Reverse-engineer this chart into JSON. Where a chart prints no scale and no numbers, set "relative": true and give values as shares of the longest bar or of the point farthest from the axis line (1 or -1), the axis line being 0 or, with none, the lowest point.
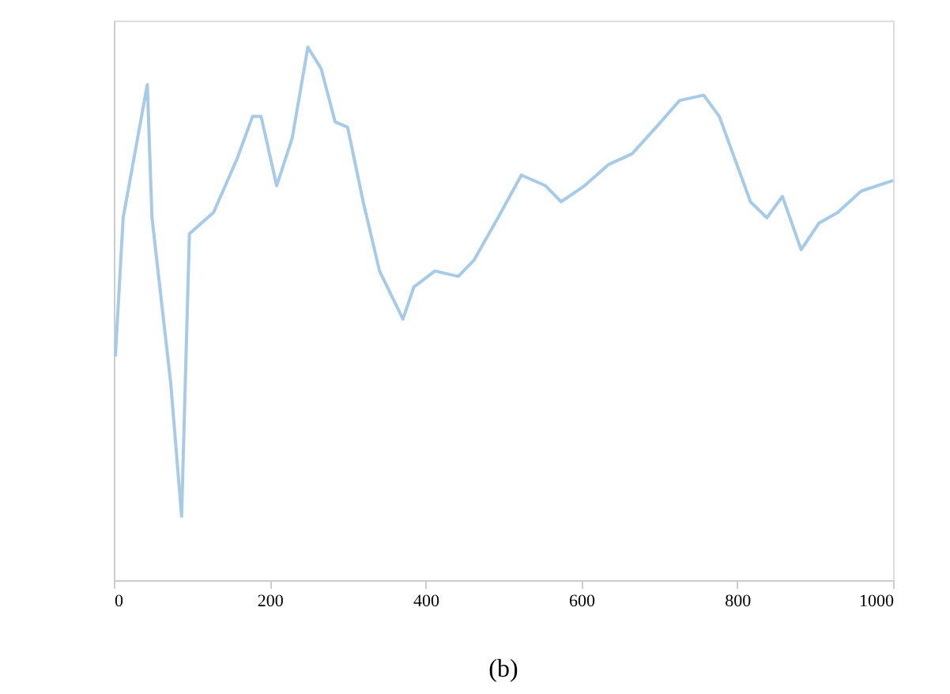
{
  "chart_data": {
    "type": "line",
    "relative": true,
    "annotations": [
      "(b)"
    ],
    "x": [
      2,
      12,
      43,
      49,
      73,
      87,
      97,
      128,
      158,
      178,
      189,
      209,
      229,
      249,
      266,
      284,
      300,
      320,
      341,
      371,
      385,
      412,
      442,
      462,
      493,
      523,
      554,
      574,
      604,
      635,
      665,
      696,
      726,
      757,
      777,
      797,
      817,
      838,
      858,
      882,
      905,
      929,
      959,
      1000
    ],
    "series": [
      {
        "color": "#a6cbe8",
        "values": [
          0.42,
          0.68,
          0.93,
          0.68,
          0.37,
          0.12,
          0.65,
          0.69,
          0.79,
          0.87,
          0.87,
          0.74,
          0.83,
          1.0,
          0.96,
          0.86,
          0.85,
          0.71,
          0.58,
          0.49,
          0.55,
          0.58,
          0.57,
          0.6,
          0.68,
          0.76,
          0.74,
          0.71,
          0.74,
          0.78,
          0.8,
          0.85,
          0.9,
          0.91,
          0.87,
          0.79,
          0.71,
          0.68,
          0.72,
          0.62,
          0.67,
          0.69,
          0.73,
          0.75
        ]
      }
    ],
    "xlim": [
      0,
      1000
    ],
    "xticks": [
      0,
      200,
      400,
      600,
      800,
      1000
    ]
  }
}
